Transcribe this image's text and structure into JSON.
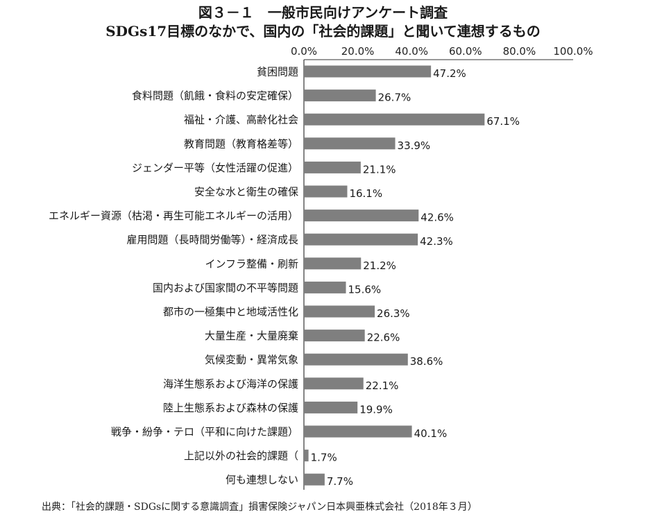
{
  "figure": {
    "title": "図３－１　一般市民向けアンケート調査",
    "subtitle": "SDGs17目標のなかで、国内の「社会的課題」と聞いて連想するもの",
    "source": "出典：「社会的課題・SDGsに関する意識調査」損害保険ジャパン日本興亜株式会社（2018年３月）"
  },
  "chart_data": {
    "type": "bar",
    "orientation": "horizontal",
    "title": "図３－１　一般市民向けアンケート調査",
    "subtitle": "SDGs17目標のなかで、国内の「社会的課題」と聞いて連想するもの",
    "xlim": [
      0,
      100
    ],
    "ticks": [
      "0.0%",
      "20.0%",
      "40.0%",
      "60.0%",
      "80.0%",
      "100.0%"
    ],
    "tick_values": [
      0,
      20,
      40,
      60,
      80,
      100
    ],
    "axis_position": "top",
    "grid": false,
    "bar_color": "#7f7f7f",
    "categories": [
      "貧困問題",
      "食料問題（飢餓・食料の安定確保）",
      "福祉・介護、高齢化社会",
      "教育問題（教育格差等）",
      "ジェンダー平等（女性活躍の促進）",
      "安全な水と衛生の確保",
      "エネルギー資源（枯渇・再生可能エネルギーの活用）",
      "雇用問題（長時間労働等）・経済成長",
      "インフラ整備・刷新",
      "国内および国家間の不平等問題",
      "都市の一極集中と地域活性化",
      "大量生産・大量廃棄",
      "気候変動・異常気象",
      "海洋生態系および海洋の保護",
      "陸上生態系および森林の保護",
      "戦争・紛争・テロ（平和に向けた課題）",
      "上記以外の社会的課題（",
      "何も連想しない"
    ],
    "values": [
      47.2,
      26.7,
      67.1,
      33.9,
      21.1,
      16.1,
      42.6,
      42.3,
      21.2,
      15.6,
      26.3,
      22.6,
      38.6,
      22.1,
      19.9,
      40.1,
      1.7,
      7.7
    ],
    "value_labels": [
      "47.2%",
      "26.7%",
      "67.1%",
      "33.9%",
      "21.1%",
      "16.1%",
      "42.6%",
      "42.3%",
      "21.2%",
      "15.6%",
      "26.3%",
      "22.6%",
      "38.6%",
      "22.1%",
      "19.9%",
      "40.1%",
      "1.7%",
      "7.7%"
    ]
  }
}
